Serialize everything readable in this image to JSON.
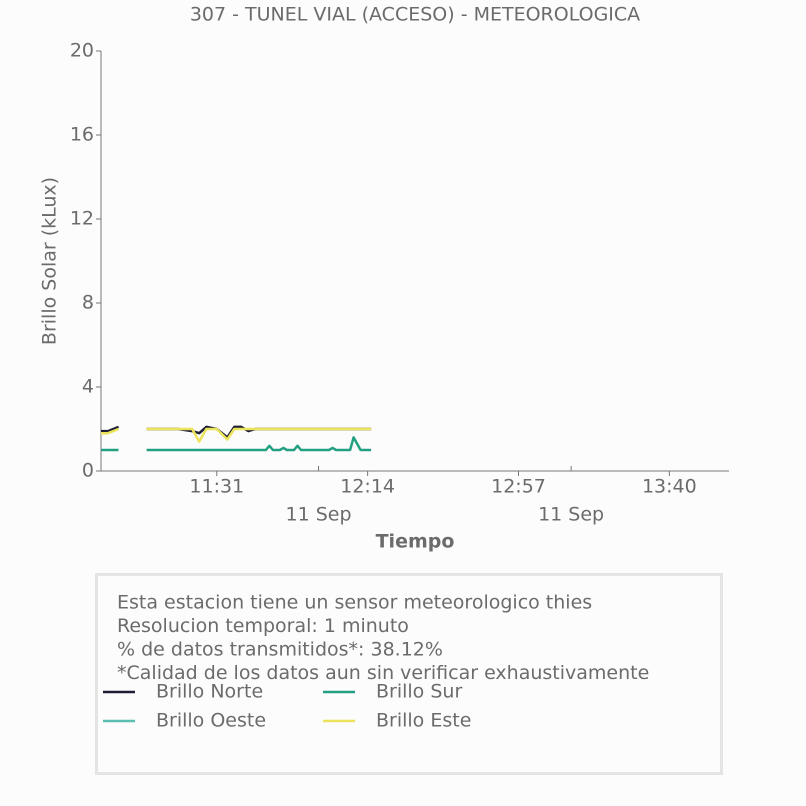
{
  "chart_data": {
    "type": "line",
    "title": "307 - TUNEL VIAL (ACCESO) - METEOROLOGICA",
    "xlabel": "Tiempo",
    "ylabel": "Brillo Solar (kLux)",
    "x": [
      "10:58",
      "11:00",
      "11:03",
      "11:07",
      "11:11",
      "11:15",
      "11:20",
      "11:24",
      "11:26",
      "11:28",
      "11:31",
      "11:34",
      "11:36",
      "11:38",
      "11:40",
      "11:42",
      "11:45",
      "11:46",
      "11:47",
      "11:49",
      "11:50",
      "11:51",
      "11:53",
      "11:54",
      "11:55",
      "12:03",
      "12:04",
      "12:05",
      "12:09",
      "12:10",
      "12:12",
      "12:15"
    ],
    "series": [
      {
        "name": "Brillo Norte",
        "color": "#1d1d35",
        "values": [
          1.9,
          1.9,
          2.1,
          null,
          2.0,
          2.0,
          2.0,
          1.9,
          1.8,
          2.1,
          2.0,
          1.6,
          2.1,
          2.1,
          1.9,
          2.0,
          2.0,
          2.0,
          2.0,
          2.0,
          2.0,
          2.0,
          2.0,
          2.0,
          2.0,
          2.0,
          2.0,
          2.0,
          2.0,
          2.0,
          2.0,
          2.0
        ]
      },
      {
        "name": "Brillo Sur",
        "color": "#23a081",
        "values": [
          1.0,
          1.0,
          1.0,
          null,
          1.0,
          1.0,
          1.0,
          1.0,
          1.0,
          1.0,
          1.0,
          1.0,
          1.0,
          1.0,
          1.0,
          1.0,
          1.0,
          1.2,
          1.0,
          1.0,
          1.1,
          1.0,
          1.0,
          1.2,
          1.0,
          1.0,
          1.1,
          1.0,
          1.0,
          1.6,
          1.0,
          1.0
        ]
      },
      {
        "name": "Brillo Oeste",
        "color": "#5cbdb3",
        "values": [
          null,
          null,
          null,
          null,
          null,
          null,
          null,
          null,
          null,
          null,
          null,
          null,
          null,
          null,
          null,
          null,
          null,
          null,
          null,
          null,
          null,
          null,
          null,
          null,
          null,
          null,
          null,
          null,
          null,
          null,
          null,
          null
        ]
      },
      {
        "name": "Brillo Este",
        "color": "#ebe35a",
        "values": [
          1.8,
          1.8,
          2.0,
          null,
          2.0,
          2.0,
          2.0,
          2.0,
          1.4,
          2.0,
          2.0,
          1.5,
          2.0,
          2.0,
          2.0,
          2.0,
          2.0,
          2.0,
          2.0,
          2.0,
          2.0,
          2.0,
          2.0,
          2.0,
          2.0,
          2.0,
          2.0,
          2.0,
          2.0,
          2.0,
          2.0,
          2.0
        ]
      }
    ],
    "xlim": [
      "10:58",
      "13:57"
    ],
    "xticks": [
      "11:31",
      "12:14",
      "12:57",
      "13:40"
    ],
    "xticks_minor": [
      {
        "value": "12:00",
        "label": "11 Sep"
      },
      {
        "value": "13:12",
        "label": "11 Sep"
      }
    ],
    "ylim": [
      0,
      20
    ],
    "yticks": [
      0,
      4,
      8,
      12,
      16,
      20
    ],
    "annotation": [
      "Esta estacion tiene un sensor meteorologico thies",
      "Resolucion temporal: 1 minuto",
      "% de datos transmitidos*: 38.12%",
      "*Calidad de los datos aun sin verificar exhaustivamente"
    ]
  }
}
